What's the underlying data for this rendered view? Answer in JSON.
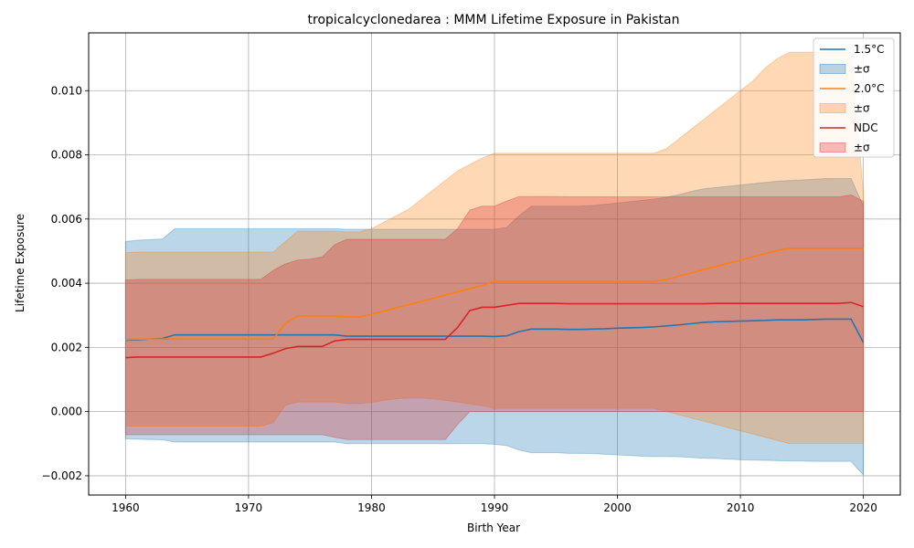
{
  "chart_data": {
    "type": "area",
    "title": "tropicalcyclonedarea : MMM Lifetime Exposure in Pakistan",
    "xlabel": "Birth Year",
    "ylabel": "Lifetime Exposure",
    "xlim": [
      1957,
      2023
    ],
    "ylim": [
      -0.0026,
      0.0118
    ],
    "xticks": [
      1960,
      1970,
      1980,
      1990,
      2000,
      2010,
      2020
    ],
    "yticks": [
      -0.002,
      0.0,
      0.002,
      0.004,
      0.006,
      0.008,
      0.01
    ],
    "ytick_labels": [
      "−0.002",
      "0.000",
      "0.002",
      "0.004",
      "0.006",
      "0.008",
      "0.010"
    ],
    "grid": true,
    "legend_position": "top-right",
    "band_label": "±σ",
    "x": [
      1960,
      1961,
      1962,
      1963,
      1964,
      1965,
      1966,
      1967,
      1968,
      1969,
      1970,
      1971,
      1972,
      1973,
      1974,
      1975,
      1976,
      1977,
      1978,
      1979,
      1980,
      1981,
      1982,
      1983,
      1984,
      1985,
      1986,
      1987,
      1988,
      1989,
      1990,
      1991,
      1992,
      1993,
      1994,
      1995,
      1996,
      1997,
      1998,
      1999,
      2000,
      2001,
      2002,
      2003,
      2004,
      2005,
      2006,
      2007,
      2008,
      2009,
      2010,
      2011,
      2012,
      2013,
      2014,
      2015,
      2016,
      2017,
      2018,
      2019,
      2020
    ],
    "series": [
      {
        "name": "1.5°C",
        "color": "#1f77b4",
        "values": [
          0.00222,
          0.00224,
          0.00226,
          0.00228,
          0.00239,
          0.00239,
          0.00239,
          0.00239,
          0.00239,
          0.00239,
          0.00239,
          0.00239,
          0.00239,
          0.00239,
          0.00239,
          0.00239,
          0.00239,
          0.00239,
          0.00235,
          0.00235,
          0.00235,
          0.00235,
          0.00235,
          0.00235,
          0.00235,
          0.00235,
          0.00235,
          0.00235,
          0.00235,
          0.00235,
          0.00234,
          0.00236,
          0.00249,
          0.00257,
          0.00257,
          0.00257,
          0.00256,
          0.00256,
          0.00257,
          0.00258,
          0.0026,
          0.00261,
          0.00262,
          0.00264,
          0.00267,
          0.0027,
          0.00274,
          0.00278,
          0.0028,
          0.00281,
          0.00282,
          0.00283,
          0.00284,
          0.00286,
          0.00286,
          0.00286,
          0.00287,
          0.00288,
          0.00288,
          0.00288,
          0.00215
        ],
        "upper": [
          0.0053,
          0.00534,
          0.00536,
          0.00538,
          0.0057,
          0.0057,
          0.0057,
          0.0057,
          0.0057,
          0.0057,
          0.0057,
          0.0057,
          0.0057,
          0.0057,
          0.0057,
          0.0057,
          0.0057,
          0.0057,
          0.00568,
          0.00568,
          0.00568,
          0.00568,
          0.00568,
          0.00568,
          0.00568,
          0.00568,
          0.00568,
          0.00568,
          0.00568,
          0.00568,
          0.00568,
          0.00574,
          0.0061,
          0.0064,
          0.0064,
          0.0064,
          0.0064,
          0.0064,
          0.00642,
          0.00646,
          0.0065,
          0.00654,
          0.00658,
          0.00662,
          0.00668,
          0.00676,
          0.00686,
          0.00694,
          0.00698,
          0.00702,
          0.00706,
          0.0071,
          0.00714,
          0.00718,
          0.0072,
          0.00722,
          0.00724,
          0.00726,
          0.00726,
          0.00726,
          0.0064
        ],
        "lower": [
          -0.00085,
          -0.00086,
          -0.00087,
          -0.00088,
          -0.00095,
          -0.00095,
          -0.00095,
          -0.00095,
          -0.00095,
          -0.00095,
          -0.00095,
          -0.00095,
          -0.00095,
          -0.00095,
          -0.00095,
          -0.00095,
          -0.00095,
          -0.00095,
          -0.001,
          -0.001,
          -0.001,
          -0.001,
          -0.001,
          -0.001,
          -0.001,
          -0.001,
          -0.001,
          -0.001,
          -0.001,
          -0.001,
          -0.00102,
          -0.00106,
          -0.0012,
          -0.00128,
          -0.00128,
          -0.00128,
          -0.0013,
          -0.0013,
          -0.00131,
          -0.00133,
          -0.00135,
          -0.00137,
          -0.00139,
          -0.0014,
          -0.0014,
          -0.00141,
          -0.00143,
          -0.00145,
          -0.00146,
          -0.00148,
          -0.0015,
          -0.00151,
          -0.00152,
          -0.00153,
          -0.00154,
          -0.00154,
          -0.00155,
          -0.00155,
          -0.00155,
          -0.00155,
          -0.00198
        ]
      },
      {
        "name": "2.0°C",
        "color": "#ff7f0e",
        "values": [
          0.00224,
          0.00226,
          0.00226,
          0.00226,
          0.00226,
          0.00226,
          0.00226,
          0.00226,
          0.00226,
          0.00226,
          0.00226,
          0.00226,
          0.00226,
          0.00275,
          0.00298,
          0.00298,
          0.00298,
          0.00298,
          0.00295,
          0.00295,
          0.00303,
          0.00313,
          0.00323,
          0.00333,
          0.00343,
          0.00353,
          0.00363,
          0.00373,
          0.00383,
          0.00393,
          0.00406,
          0.00406,
          0.00406,
          0.00406,
          0.00406,
          0.00406,
          0.00406,
          0.00406,
          0.00406,
          0.00406,
          0.00406,
          0.00406,
          0.00406,
          0.00406,
          0.00412,
          0.00422,
          0.00432,
          0.00442,
          0.00452,
          0.00462,
          0.00472,
          0.00482,
          0.00492,
          0.00502,
          0.00509,
          0.00509,
          0.00509,
          0.00509,
          0.00509,
          0.00509,
          0.00509
        ],
        "upper": [
          0.00495,
          0.00497,
          0.00497,
          0.00497,
          0.00497,
          0.00497,
          0.00497,
          0.00497,
          0.00497,
          0.00497,
          0.00497,
          0.00497,
          0.00497,
          0.0053,
          0.00562,
          0.00562,
          0.00562,
          0.00562,
          0.0056,
          0.0056,
          0.0057,
          0.0059,
          0.0061,
          0.0063,
          0.0066,
          0.0069,
          0.0072,
          0.0075,
          0.0077,
          0.0079,
          0.00805,
          0.00805,
          0.00805,
          0.00805,
          0.00805,
          0.00805,
          0.00805,
          0.00805,
          0.00805,
          0.00805,
          0.00805,
          0.00805,
          0.00805,
          0.00805,
          0.0082,
          0.0085,
          0.0088,
          0.0091,
          0.0094,
          0.0097,
          0.01,
          0.0103,
          0.0107,
          0.011,
          0.0112,
          0.0112,
          0.0112,
          0.0112,
          0.0112,
          0.0112,
          0.0068
        ],
        "lower": [
          -0.00045,
          -0.00045,
          -0.00045,
          -0.00045,
          -0.00045,
          -0.00045,
          -0.00045,
          -0.00045,
          -0.00045,
          -0.00045,
          -0.00045,
          -0.00045,
          -0.00035,
          0.0002,
          0.0003,
          0.0003,
          0.0003,
          0.0003,
          0.00025,
          0.00025,
          0.00028,
          0.00035,
          0.0004,
          0.00042,
          0.00042,
          0.0004,
          0.00035,
          0.0003,
          0.00024,
          0.00018,
          0.0001,
          0.0001,
          0.0001,
          0.0001,
          0.0001,
          0.0001,
          0.0001,
          0.0001,
          0.0001,
          0.0001,
          0.0001,
          0.0001,
          0.0001,
          0.0001,
          0.0,
          -0.0001,
          -0.0002,
          -0.0003,
          -0.0004,
          -0.0005,
          -0.0006,
          -0.0007,
          -0.0008,
          -0.0009,
          -0.001,
          -0.001,
          -0.001,
          -0.001,
          -0.001,
          -0.001,
          -0.001
        ]
      },
      {
        "name": "NDC",
        "color": "#d62728",
        "values": [
          0.00168,
          0.0017,
          0.0017,
          0.0017,
          0.0017,
          0.0017,
          0.0017,
          0.0017,
          0.0017,
          0.0017,
          0.0017,
          0.0017,
          0.00182,
          0.00196,
          0.00203,
          0.00203,
          0.00203,
          0.0022,
          0.00225,
          0.00225,
          0.00225,
          0.00225,
          0.00225,
          0.00225,
          0.00225,
          0.00225,
          0.00225,
          0.00262,
          0.00315,
          0.00325,
          0.00325,
          0.00331,
          0.00337,
          0.00337,
          0.00337,
          0.00337,
          0.00336,
          0.00336,
          0.00336,
          0.00336,
          0.00336,
          0.00336,
          0.00336,
          0.00336,
          0.00336,
          0.00336,
          0.00336,
          0.00336,
          0.00337,
          0.00337,
          0.00337,
          0.00337,
          0.00337,
          0.00337,
          0.00337,
          0.00337,
          0.00337,
          0.00337,
          0.00337,
          0.0034,
          0.00327
        ],
        "upper": [
          0.0041,
          0.00412,
          0.00412,
          0.00412,
          0.00412,
          0.00412,
          0.00412,
          0.00412,
          0.00412,
          0.00412,
          0.00412,
          0.00412,
          0.0044,
          0.0046,
          0.00472,
          0.00475,
          0.00482,
          0.0052,
          0.00537,
          0.00537,
          0.00537,
          0.00537,
          0.00537,
          0.00537,
          0.00537,
          0.00537,
          0.00537,
          0.0057,
          0.00628,
          0.0064,
          0.0064,
          0.00656,
          0.0067,
          0.0067,
          0.0067,
          0.0067,
          0.00669,
          0.00669,
          0.00669,
          0.00669,
          0.00669,
          0.00669,
          0.00669,
          0.00669,
          0.00669,
          0.00669,
          0.00669,
          0.00669,
          0.00669,
          0.00669,
          0.00669,
          0.00669,
          0.00669,
          0.00669,
          0.00669,
          0.00669,
          0.00669,
          0.00669,
          0.00669,
          0.00675,
          0.00655
        ],
        "lower": [
          -0.00072,
          -0.00072,
          -0.00072,
          -0.00072,
          -0.00072,
          -0.00072,
          -0.00072,
          -0.00072,
          -0.00072,
          -0.00072,
          -0.00072,
          -0.00072,
          -0.00072,
          -0.00072,
          -0.00072,
          -0.00072,
          -0.00072,
          -0.0008,
          -0.00087,
          -0.00087,
          -0.00087,
          -0.00087,
          -0.00087,
          -0.00087,
          -0.00087,
          -0.00087,
          -0.00087,
          -0.0004,
          0.0,
          0.0,
          0.0,
          0.0,
          0.0,
          0.0,
          0.0,
          0.0,
          0.0,
          0.0,
          0.0,
          0.0,
          0.0,
          0.0,
          0.0,
          0.0,
          0.0,
          0.0,
          0.0,
          0.0,
          0.0,
          0.0,
          0.0,
          0.0,
          0.0,
          0.0,
          0.0,
          0.0,
          0.0,
          0.0,
          0.0,
          0.0,
          0.0
        ]
      }
    ]
  }
}
